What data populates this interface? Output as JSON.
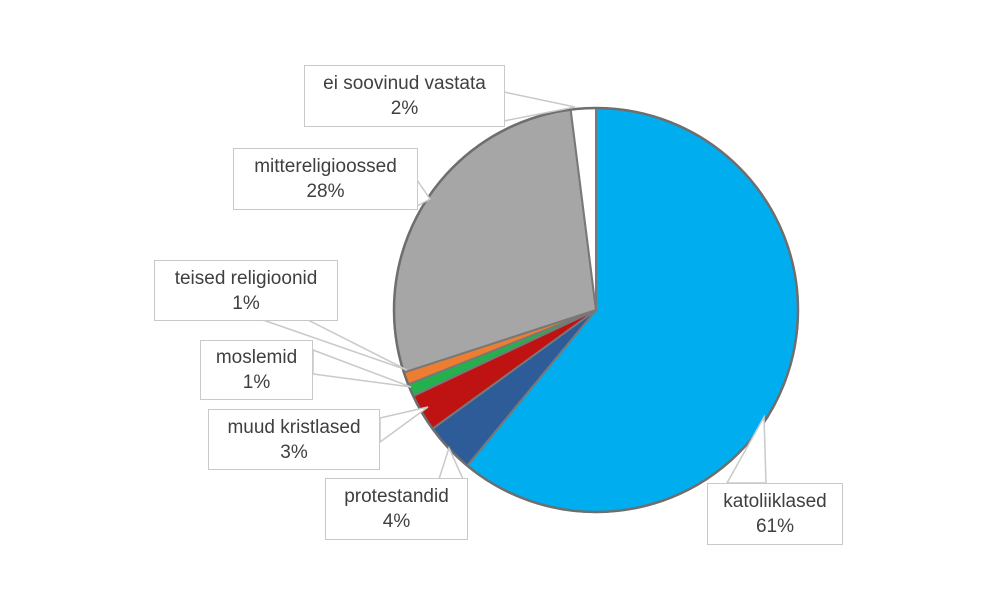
{
  "page": {
    "background_color": "#ffffff"
  },
  "chart_data": {
    "type": "pie",
    "title": "",
    "direction": "clockwise",
    "start_angle_deg": 0,
    "legend_position": "external-callouts",
    "outline_color": "#787878",
    "callout_border_color": "#c9c9c9",
    "callout_fill_color": "#ffffff",
    "text_color": "#3f3f3f",
    "slices": [
      {
        "label": "katoliiklased",
        "value_pct": 61,
        "display": "61%",
        "color": "#00AEEF"
      },
      {
        "label": "protestandid",
        "value_pct": 4,
        "display": "4%",
        "color": "#2E5C99"
      },
      {
        "label": "muud kristlased",
        "value_pct": 3,
        "display": "3%",
        "color": "#BF1212"
      },
      {
        "label": "moslemid",
        "value_pct": 1,
        "display": "1%",
        "color": "#22B14C"
      },
      {
        "label": "teised religioonid",
        "value_pct": 1,
        "display": "1%",
        "color": "#ED7D31"
      },
      {
        "label": "mittereligioossed",
        "value_pct": 28,
        "display": "28%",
        "color": "#A6A6A6"
      },
      {
        "label": "ei soovinud vastata",
        "value_pct": 2,
        "display": "2%",
        "color": "#FFFFFF"
      }
    ]
  }
}
